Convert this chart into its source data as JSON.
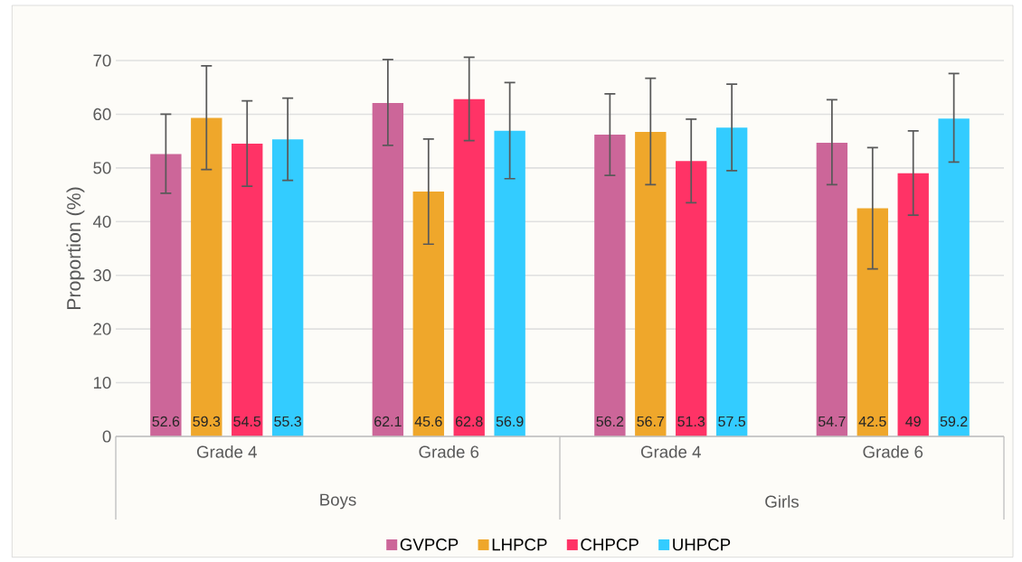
{
  "chart_data": {
    "type": "bar",
    "ylabel": "Proportion (%)",
    "categories": [
      "Grade 4",
      "Grade 6",
      "Grade 4",
      "Grade 6"
    ],
    "annotations": [
      "Boys",
      "Girls"
    ],
    "ylim": [
      0,
      70
    ],
    "yticks": [
      0,
      10,
      20,
      30,
      40,
      50,
      60,
      70
    ],
    "grid": "y",
    "legend": "bottom",
    "data_labels": true,
    "series": [
      {
        "name": "GVPCP",
        "color": "#cc6699",
        "values": [
          52.6,
          62.1,
          56.2,
          54.7
        ],
        "errors": [
          [
            45.3,
            60
          ],
          [
            54.2,
            70.2
          ],
          [
            48.6,
            63.8
          ],
          [
            46.9,
            62.7
          ]
        ]
      },
      {
        "name": "LHPCP",
        "color": "#efa72b",
        "values": [
          59.3,
          45.6,
          56.7,
          42.5
        ],
        "errors": [
          [
            49.7,
            69
          ],
          [
            35.8,
            55.4
          ],
          [
            46.9,
            66.7
          ],
          [
            31.2,
            53.8
          ]
        ]
      },
      {
        "name": "CHPCP",
        "color": "#ff3366",
        "values": [
          54.5,
          62.8,
          51.3,
          49
        ],
        "errors": [
          [
            46.6,
            62.5
          ],
          [
            55.1,
            70.6
          ],
          [
            43.5,
            59.1
          ],
          [
            41.2,
            56.9
          ]
        ]
      },
      {
        "name": "UHPCP",
        "color": "#33ccff",
        "values": [
          55.3,
          56.9,
          57.5,
          59.2
        ],
        "errors": [
          [
            47.7,
            63
          ],
          [
            48,
            65.9
          ],
          [
            49.5,
            65.6
          ],
          [
            51.1,
            67.6
          ]
        ]
      }
    ]
  }
}
